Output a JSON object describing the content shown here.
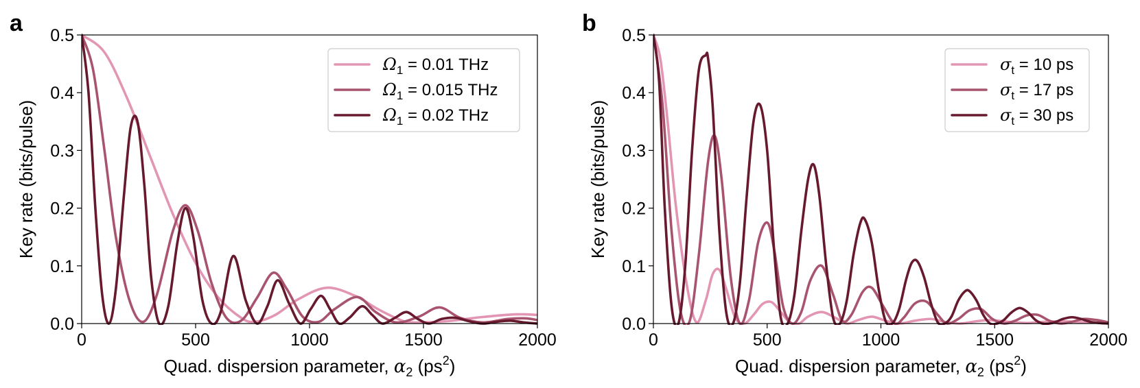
{
  "chart_data": [
    {
      "type": "line",
      "panel_label": "a",
      "xlabel_prefix": "Quad. dispersion parameter, ",
      "xlabel_symbol": "α",
      "xlabel_sub": "2",
      "xlabel_unit_open": " (ps",
      "xlabel_sup": "2",
      "xlabel_unit_close": ")",
      "ylabel": "Key rate (bits/pulse)",
      "xlim": [
        0,
        2000
      ],
      "ylim": [
        0,
        0.5
      ],
      "xticks": [
        0,
        500,
        1000,
        1500,
        2000
      ],
      "yticks": [
        0.0,
        0.1,
        0.2,
        0.3,
        0.4,
        0.5
      ],
      "xtick_labels": [
        "0",
        "500",
        "1000",
        "1500",
        "2000"
      ],
      "ytick_labels": [
        "0.0",
        "0.1",
        "0.2",
        "0.3",
        "0.4",
        "0.5"
      ],
      "legend_position": "top-right",
      "series": [
        {
          "legend_symbol": "Ω",
          "legend_sub": "1",
          "legend_value": " = 0.01 THz",
          "color": "#e396b3",
          "x": [
            0,
            100,
            200,
            300,
            400,
            500,
            600,
            700,
            760,
            850,
            950,
            1075,
            1200,
            1300,
            1400,
            1450,
            1600,
            1750,
            1900,
            2000
          ],
          "y": [
            0.5,
            0.47,
            0.39,
            0.29,
            0.19,
            0.105,
            0.045,
            0.01,
            0.003,
            0.015,
            0.042,
            0.062,
            0.048,
            0.025,
            0.006,
            0.002,
            0.004,
            0.011,
            0.016,
            0.015
          ]
        },
        {
          "legend_symbol": "Ω",
          "legend_sub": "1",
          "legend_value": " = 0.015 THz",
          "color": "#a8546f",
          "x": [
            0,
            50,
            100,
            150,
            210,
            270,
            330,
            400,
            455,
            510,
            570,
            635,
            700,
            770,
            840,
            900,
            970,
            1040,
            1110,
            1210,
            1290,
            1380,
            1480,
            1570,
            1660,
            1760,
            1870,
            1950,
            2000
          ],
          "y": [
            0.5,
            0.44,
            0.3,
            0.15,
            0.04,
            0.003,
            0.05,
            0.16,
            0.205,
            0.16,
            0.07,
            0.01,
            0.005,
            0.045,
            0.088,
            0.06,
            0.012,
            0.003,
            0.025,
            0.046,
            0.02,
            0.002,
            0.012,
            0.028,
            0.01,
            0.002,
            0.008,
            0.009,
            0.006
          ]
        },
        {
          "legend_symbol": "Ω",
          "legend_sub": "1",
          "legend_value": " = 0.02 THz",
          "color": "#67192e",
          "x": [
            0,
            30,
            60,
            90,
            120,
            150,
            185,
            215,
            245,
            275,
            305,
            340,
            380,
            420,
            455,
            490,
            530,
            570,
            610,
            665,
            720,
            770,
            815,
            860,
            910,
            960,
            1005,
            1050,
            1090,
            1130,
            1175,
            1230,
            1275,
            1320,
            1375,
            1425,
            1475,
            1525,
            1580,
            1640,
            1700,
            1760,
            1820,
            1880,
            1940,
            2000
          ],
          "y": [
            0.5,
            0.4,
            0.2,
            0.05,
            0.0,
            0.06,
            0.22,
            0.34,
            0.35,
            0.24,
            0.08,
            0.0,
            0.03,
            0.14,
            0.2,
            0.15,
            0.04,
            0.0,
            0.02,
            0.117,
            0.04,
            0.0,
            0.03,
            0.075,
            0.035,
            0.0,
            0.025,
            0.048,
            0.025,
            0.0,
            0.01,
            0.03,
            0.015,
            0.0,
            0.01,
            0.02,
            0.008,
            0.0,
            0.008,
            0.01,
            0.004,
            0.0,
            0.003,
            0.005,
            0.002,
            0.0
          ]
        }
      ]
    },
    {
      "type": "line",
      "panel_label": "b",
      "xlabel_prefix": "Quad. dispersion parameter, ",
      "xlabel_symbol": "α",
      "xlabel_sub": "2",
      "xlabel_unit_open": " (ps",
      "xlabel_sup": "2",
      "xlabel_unit_close": ")",
      "ylabel": "Key rate (bits/pulse)",
      "xlim": [
        0,
        2000
      ],
      "ylim": [
        0,
        0.5
      ],
      "xticks": [
        0,
        500,
        1000,
        1500,
        2000
      ],
      "yticks": [
        0.0,
        0.1,
        0.2,
        0.3,
        0.4,
        0.5
      ],
      "xtick_labels": [
        "0",
        "500",
        "1000",
        "1500",
        "2000"
      ],
      "ytick_labels": [
        "0.0",
        "0.1",
        "0.2",
        "0.3",
        "0.4",
        "0.5"
      ],
      "legend_position": "top-right",
      "series": [
        {
          "legend_symbol": "σ",
          "legend_sub": "t",
          "legend_value": " = 10 ps",
          "color": "#e396b3",
          "x": [
            0,
            30,
            60,
            100,
            150,
            190,
            230,
            260,
            290,
            320,
            360,
            400,
            440,
            480,
            520,
            560,
            600,
            640,
            680,
            740,
            800,
            850,
            900,
            960,
            1020,
            1080,
            1150,
            1220,
            1280,
            1350,
            1420,
            1480,
            1560,
            1640,
            1720,
            1800,
            1900,
            2000
          ],
          "y": [
            0.5,
            0.46,
            0.36,
            0.2,
            0.06,
            0.002,
            0.04,
            0.085,
            0.093,
            0.06,
            0.01,
            0.0,
            0.015,
            0.034,
            0.037,
            0.02,
            0.002,
            0.0,
            0.012,
            0.02,
            0.01,
            0.0,
            0.006,
            0.012,
            0.005,
            0.0,
            0.005,
            0.008,
            0.003,
            0.0,
            0.004,
            0.006,
            0.003,
            0.001,
            0.003,
            0.004,
            0.002,
            0.001
          ]
        },
        {
          "legend_symbol": "σ",
          "legend_sub": "t",
          "legend_value": " = 17 ps",
          "color": "#a8546f",
          "x": [
            0,
            40,
            80,
            120,
            160,
            200,
            240,
            270,
            300,
            340,
            380,
            420,
            460,
            500,
            530,
            570,
            610,
            650,
            690,
            740,
            790,
            830,
            870,
            920,
            960,
            1010,
            1060,
            1100,
            1150,
            1200,
            1250,
            1290,
            1340,
            1390,
            1440,
            1490,
            1540,
            1590,
            1640,
            1690,
            1740,
            1790,
            1840,
            1890,
            1950,
            2000
          ],
          "y": [
            0.5,
            0.38,
            0.16,
            0.02,
            0.005,
            0.12,
            0.28,
            0.325,
            0.25,
            0.08,
            0.0,
            0.04,
            0.14,
            0.175,
            0.13,
            0.03,
            0.0,
            0.02,
            0.075,
            0.1,
            0.05,
            0.005,
            0.015,
            0.055,
            0.062,
            0.03,
            0.0,
            0.01,
            0.035,
            0.038,
            0.015,
            0.0,
            0.008,
            0.023,
            0.025,
            0.008,
            0.0,
            0.005,
            0.014,
            0.015,
            0.005,
            0.0,
            0.003,
            0.008,
            0.006,
            0.002
          ]
        },
        {
          "legend_symbol": "σ",
          "legend_sub": "t",
          "legend_value": " = 30 ps",
          "color": "#67192e",
          "x": [
            0,
            25,
            50,
            80,
            110,
            140,
            170,
            200,
            230,
            240,
            260,
            290,
            320,
            350,
            380,
            410,
            440,
            470,
            500,
            530,
            560,
            590,
            620,
            650,
            680,
            705,
            730,
            760,
            790,
            820,
            850,
            880,
            910,
            930,
            960,
            990,
            1020,
            1050,
            1080,
            1110,
            1135,
            1160,
            1190,
            1220,
            1250,
            1280,
            1310,
            1340,
            1370,
            1390,
            1420,
            1450,
            1480,
            1510,
            1540,
            1570,
            1600,
            1620,
            1650,
            1680,
            1710,
            1740,
            1770,
            1800,
            1840,
            1880,
            1920,
            1960,
            2000
          ],
          "y": [
            0.5,
            0.42,
            0.2,
            0.03,
            0.0,
            0.1,
            0.3,
            0.44,
            0.465,
            0.46,
            0.38,
            0.16,
            0.02,
            0.0,
            0.07,
            0.22,
            0.35,
            0.378,
            0.3,
            0.13,
            0.01,
            0.0,
            0.05,
            0.16,
            0.25,
            0.275,
            0.22,
            0.1,
            0.01,
            0.0,
            0.04,
            0.12,
            0.175,
            0.18,
            0.14,
            0.06,
            0.005,
            0.0,
            0.025,
            0.075,
            0.105,
            0.108,
            0.08,
            0.035,
            0.002,
            0.0,
            0.012,
            0.04,
            0.056,
            0.056,
            0.04,
            0.015,
            0.0,
            0.0,
            0.006,
            0.018,
            0.026,
            0.026,
            0.018,
            0.006,
            0.0,
            0.0,
            0.003,
            0.008,
            0.011,
            0.008,
            0.003,
            0.001,
            0.0
          ]
        }
      ]
    }
  ]
}
